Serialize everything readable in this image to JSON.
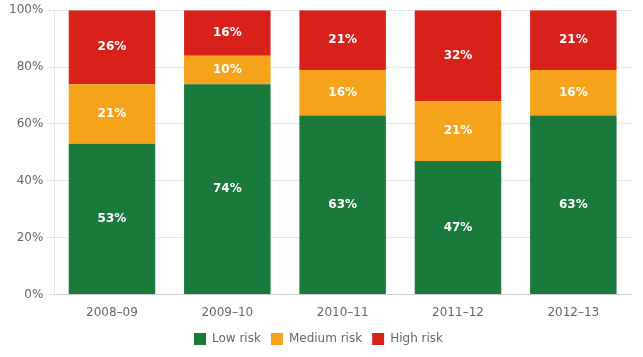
{
  "chart_data": {
    "type": "bar",
    "stacked": true,
    "categories": [
      "2008–09",
      "2009–10",
      "2010–11",
      "2011–12",
      "2012–13"
    ],
    "series": [
      {
        "name": "Low risk",
        "color": "#1a7a3c",
        "values": [
          53,
          74,
          63,
          47,
          63
        ],
        "value_labels": [
          "53%",
          "74%",
          "63%",
          "47%",
          "63%"
        ]
      },
      {
        "name": "Medium risk",
        "color": "#f5a31a",
        "values": [
          21,
          10,
          16,
          21,
          16
        ],
        "value_labels": [
          "21%",
          "10%",
          "16%",
          "21%",
          "16%"
        ]
      },
      {
        "name": "High risk",
        "color": "#d9211c",
        "values": [
          26,
          16,
          21,
          32,
          21
        ],
        "value_labels": [
          "26%",
          "16%",
          "21%",
          "32%",
          "21%"
        ]
      }
    ],
    "ylim": [
      0,
      100
    ],
    "yticks": [
      {
        "value": 0,
        "label": "0%"
      },
      {
        "value": 20,
        "label": "20%"
      },
      {
        "value": 40,
        "label": "40%"
      },
      {
        "value": 60,
        "label": "60%"
      },
      {
        "value": 80,
        "label": "80%"
      },
      {
        "value": 100,
        "label": "100%"
      }
    ],
    "grid": true,
    "legend": "bottom",
    "data_labels": true
  }
}
